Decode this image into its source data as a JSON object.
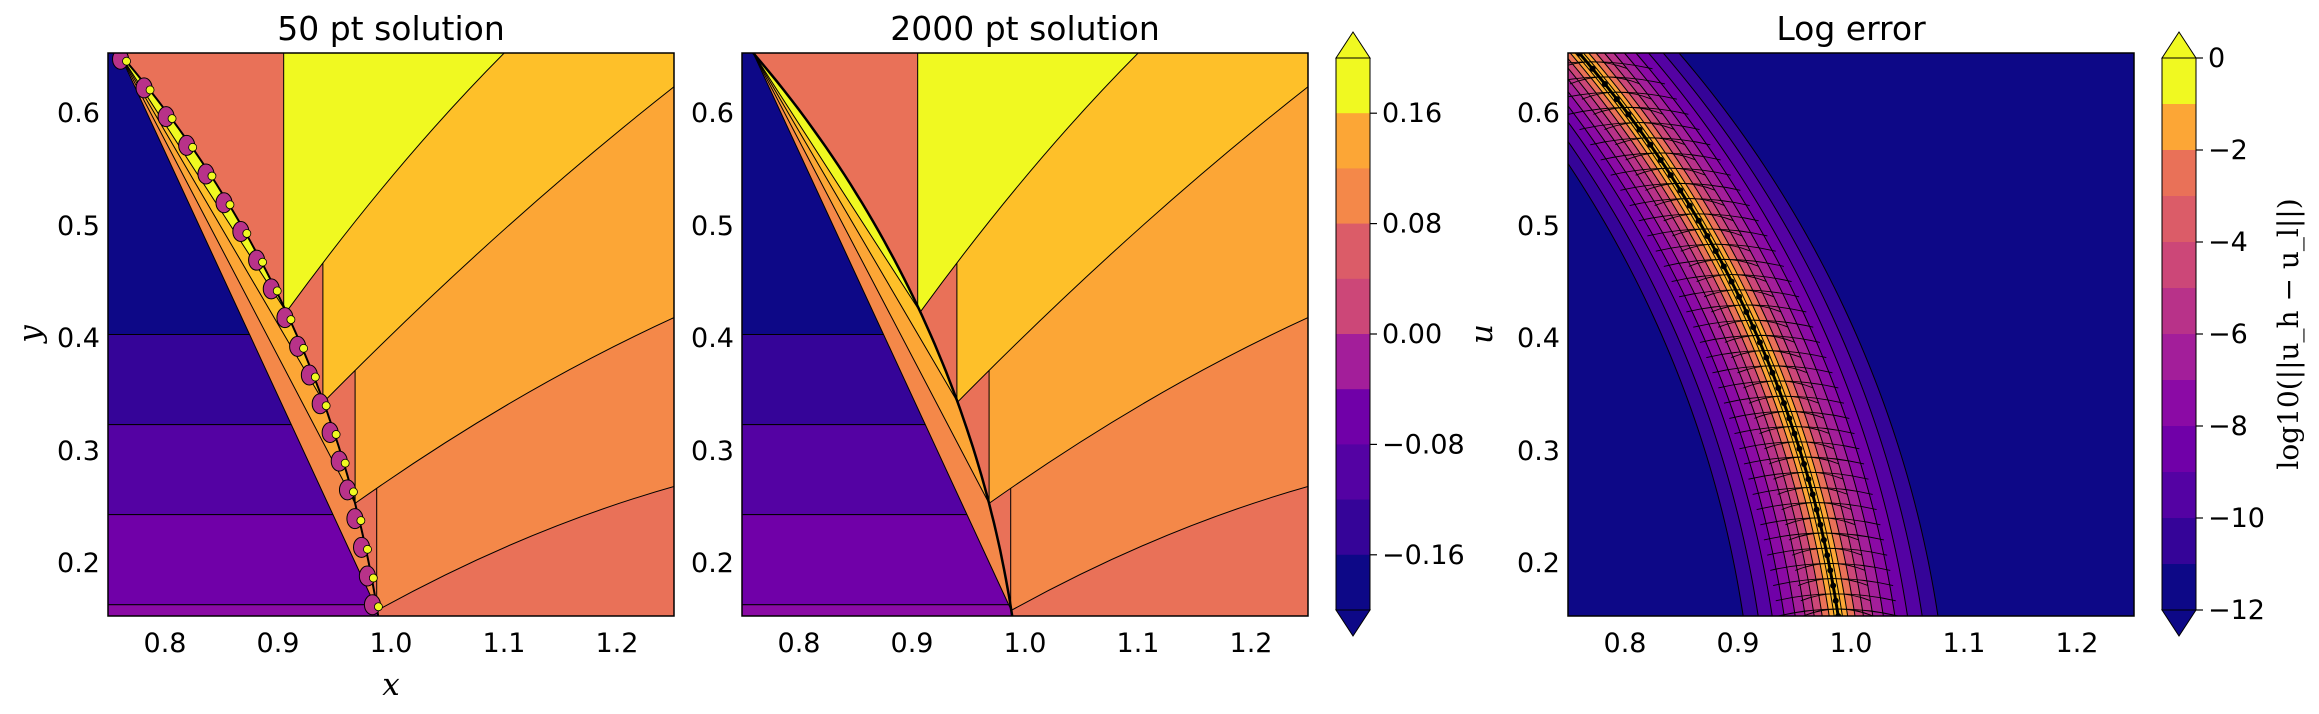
{
  "chart_data": [
    {
      "type": "contour",
      "title": "50 pt solution",
      "xlabel": "x",
      "ylabel": "y",
      "xlim": [
        0.75,
        1.25
      ],
      "ylim": [
        0.15,
        0.65
      ],
      "xticks": [
        "0.8",
        "0.9",
        "1.0",
        "1.1",
        "1.2"
      ],
      "yticks": [
        "0.2",
        "0.3",
        "0.4",
        "0.5",
        "0.6"
      ],
      "interface_curve": "x² + y² = 1",
      "levels": [
        -0.2,
        -0.16,
        -0.12,
        -0.08,
        -0.04,
        0.0,
        0.04,
        0.08,
        0.12,
        0.16,
        0.2
      ],
      "discretization_points": 50
    },
    {
      "type": "contour",
      "title": "2000 pt solution",
      "xlabel": "",
      "ylabel": "",
      "xlim": [
        0.75,
        1.25
      ],
      "ylim": [
        0.15,
        0.65
      ],
      "xticks": [
        "0.8",
        "0.9",
        "1.0",
        "1.1",
        "1.2"
      ],
      "yticks": [
        "0.2",
        "0.3",
        "0.4",
        "0.5",
        "0.6"
      ],
      "interface_curve": "x² + y² = 1",
      "levels": [
        -0.2,
        -0.16,
        -0.12,
        -0.08,
        -0.04,
        0.0,
        0.04,
        0.08,
        0.12,
        0.16,
        0.2
      ],
      "colorbar": {
        "ticks": [
          0.16,
          0.08,
          0.0,
          -0.08,
          -0.16
        ],
        "tick_labels": [
          "0.16",
          "0.08",
          "0.00",
          "−0.08",
          "−0.16"
        ],
        "range": [
          -0.2,
          0.2
        ],
        "extend": "both"
      }
    },
    {
      "type": "contour",
      "title": "Log error",
      "xlabel": "",
      "ylabel": "u",
      "xlim": [
        0.75,
        1.25
      ],
      "ylim": [
        0.15,
        0.65
      ],
      "xticks": [
        "0.8",
        "0.9",
        "1.0",
        "1.1",
        "1.2"
      ],
      "yticks": [
        "0.2",
        "0.3",
        "0.4",
        "0.5",
        "0.6"
      ],
      "levels": [
        -12,
        -11,
        -10,
        -9,
        -8,
        -7,
        -6,
        -5,
        -4,
        -3,
        -2,
        -1,
        0
      ],
      "colorbar": {
        "label": "log10(||u_h − u_l||)",
        "ticks": [
          0,
          -2,
          -4,
          -6,
          -8,
          -10,
          -12
        ],
        "tick_labels": [
          "0",
          "−2",
          "−4",
          "−6",
          "−8",
          "−10",
          "−12"
        ],
        "range": [
          -12,
          0
        ],
        "extend": "both"
      }
    }
  ],
  "colors": {
    "colormap": "plasma",
    "level_colors": [
      "#0d0887",
      "#350498",
      "#5402a3",
      "#7000a8",
      "#8b0aa5",
      "#a31e9a",
      "#b83289",
      "#cc4778",
      "#db5c68",
      "#e97158",
      "#f48849",
      "#fca636",
      "#fec029",
      "#f0f921"
    ],
    "contour_line": "#000000",
    "frame": "#000000"
  }
}
